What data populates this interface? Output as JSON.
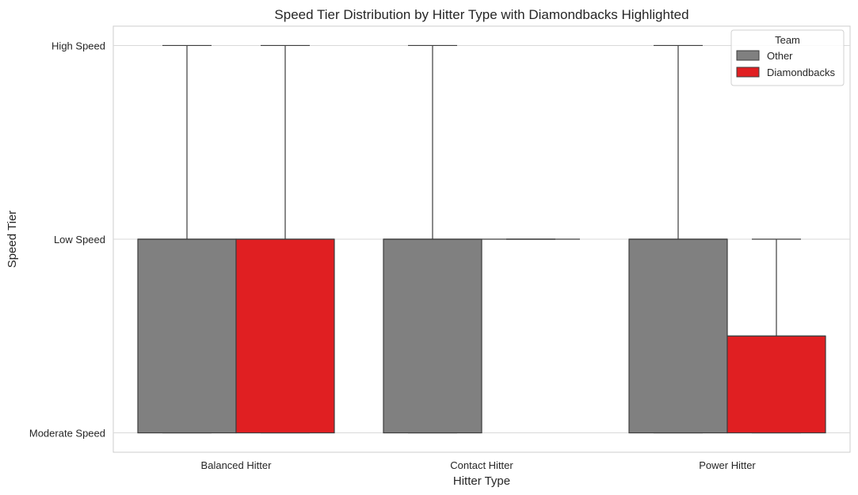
{
  "chart_data": {
    "type": "box",
    "title": "Speed Tier Distribution by Hitter Type with Diamondbacks Highlighted",
    "xlabel": "Hitter Type",
    "ylabel": "Speed Tier",
    "categories": [
      "Balanced Hitter",
      "Contact Hitter",
      "Power Hitter"
    ],
    "y_levels": [
      "Moderate Speed",
      "Low Speed",
      "High Speed"
    ],
    "y_level_values": [
      0,
      1,
      2
    ],
    "ylim": [
      -0.1,
      2.1
    ],
    "grid": "horizontal",
    "legend": {
      "title": "Team",
      "placement": "top-right",
      "entries": [
        "Other",
        "Diamondbacks"
      ]
    },
    "series": [
      {
        "name": "Other",
        "color": "#808080",
        "boxes": [
          {
            "whisker_low": 0,
            "q1": 0,
            "median": 1,
            "q3": 1,
            "whisker_high": 2
          },
          {
            "whisker_low": 0,
            "q1": 0,
            "median": 1,
            "q3": 1,
            "whisker_high": 2
          },
          {
            "whisker_low": 0,
            "q1": 0,
            "median": 1,
            "q3": 1,
            "whisker_high": 2
          }
        ]
      },
      {
        "name": "Diamondbacks",
        "color": "#e01f22",
        "boxes": [
          {
            "whisker_low": 0,
            "q1": 0,
            "median": 1,
            "q3": 1,
            "whisker_high": 2
          },
          {
            "whisker_low": 1,
            "q1": 1,
            "median": 1,
            "q3": 1,
            "whisker_high": 1
          },
          {
            "whisker_low": 0,
            "q1": 0,
            "median": 0.5,
            "q3": 0.5,
            "whisker_high": 1
          }
        ]
      }
    ]
  }
}
